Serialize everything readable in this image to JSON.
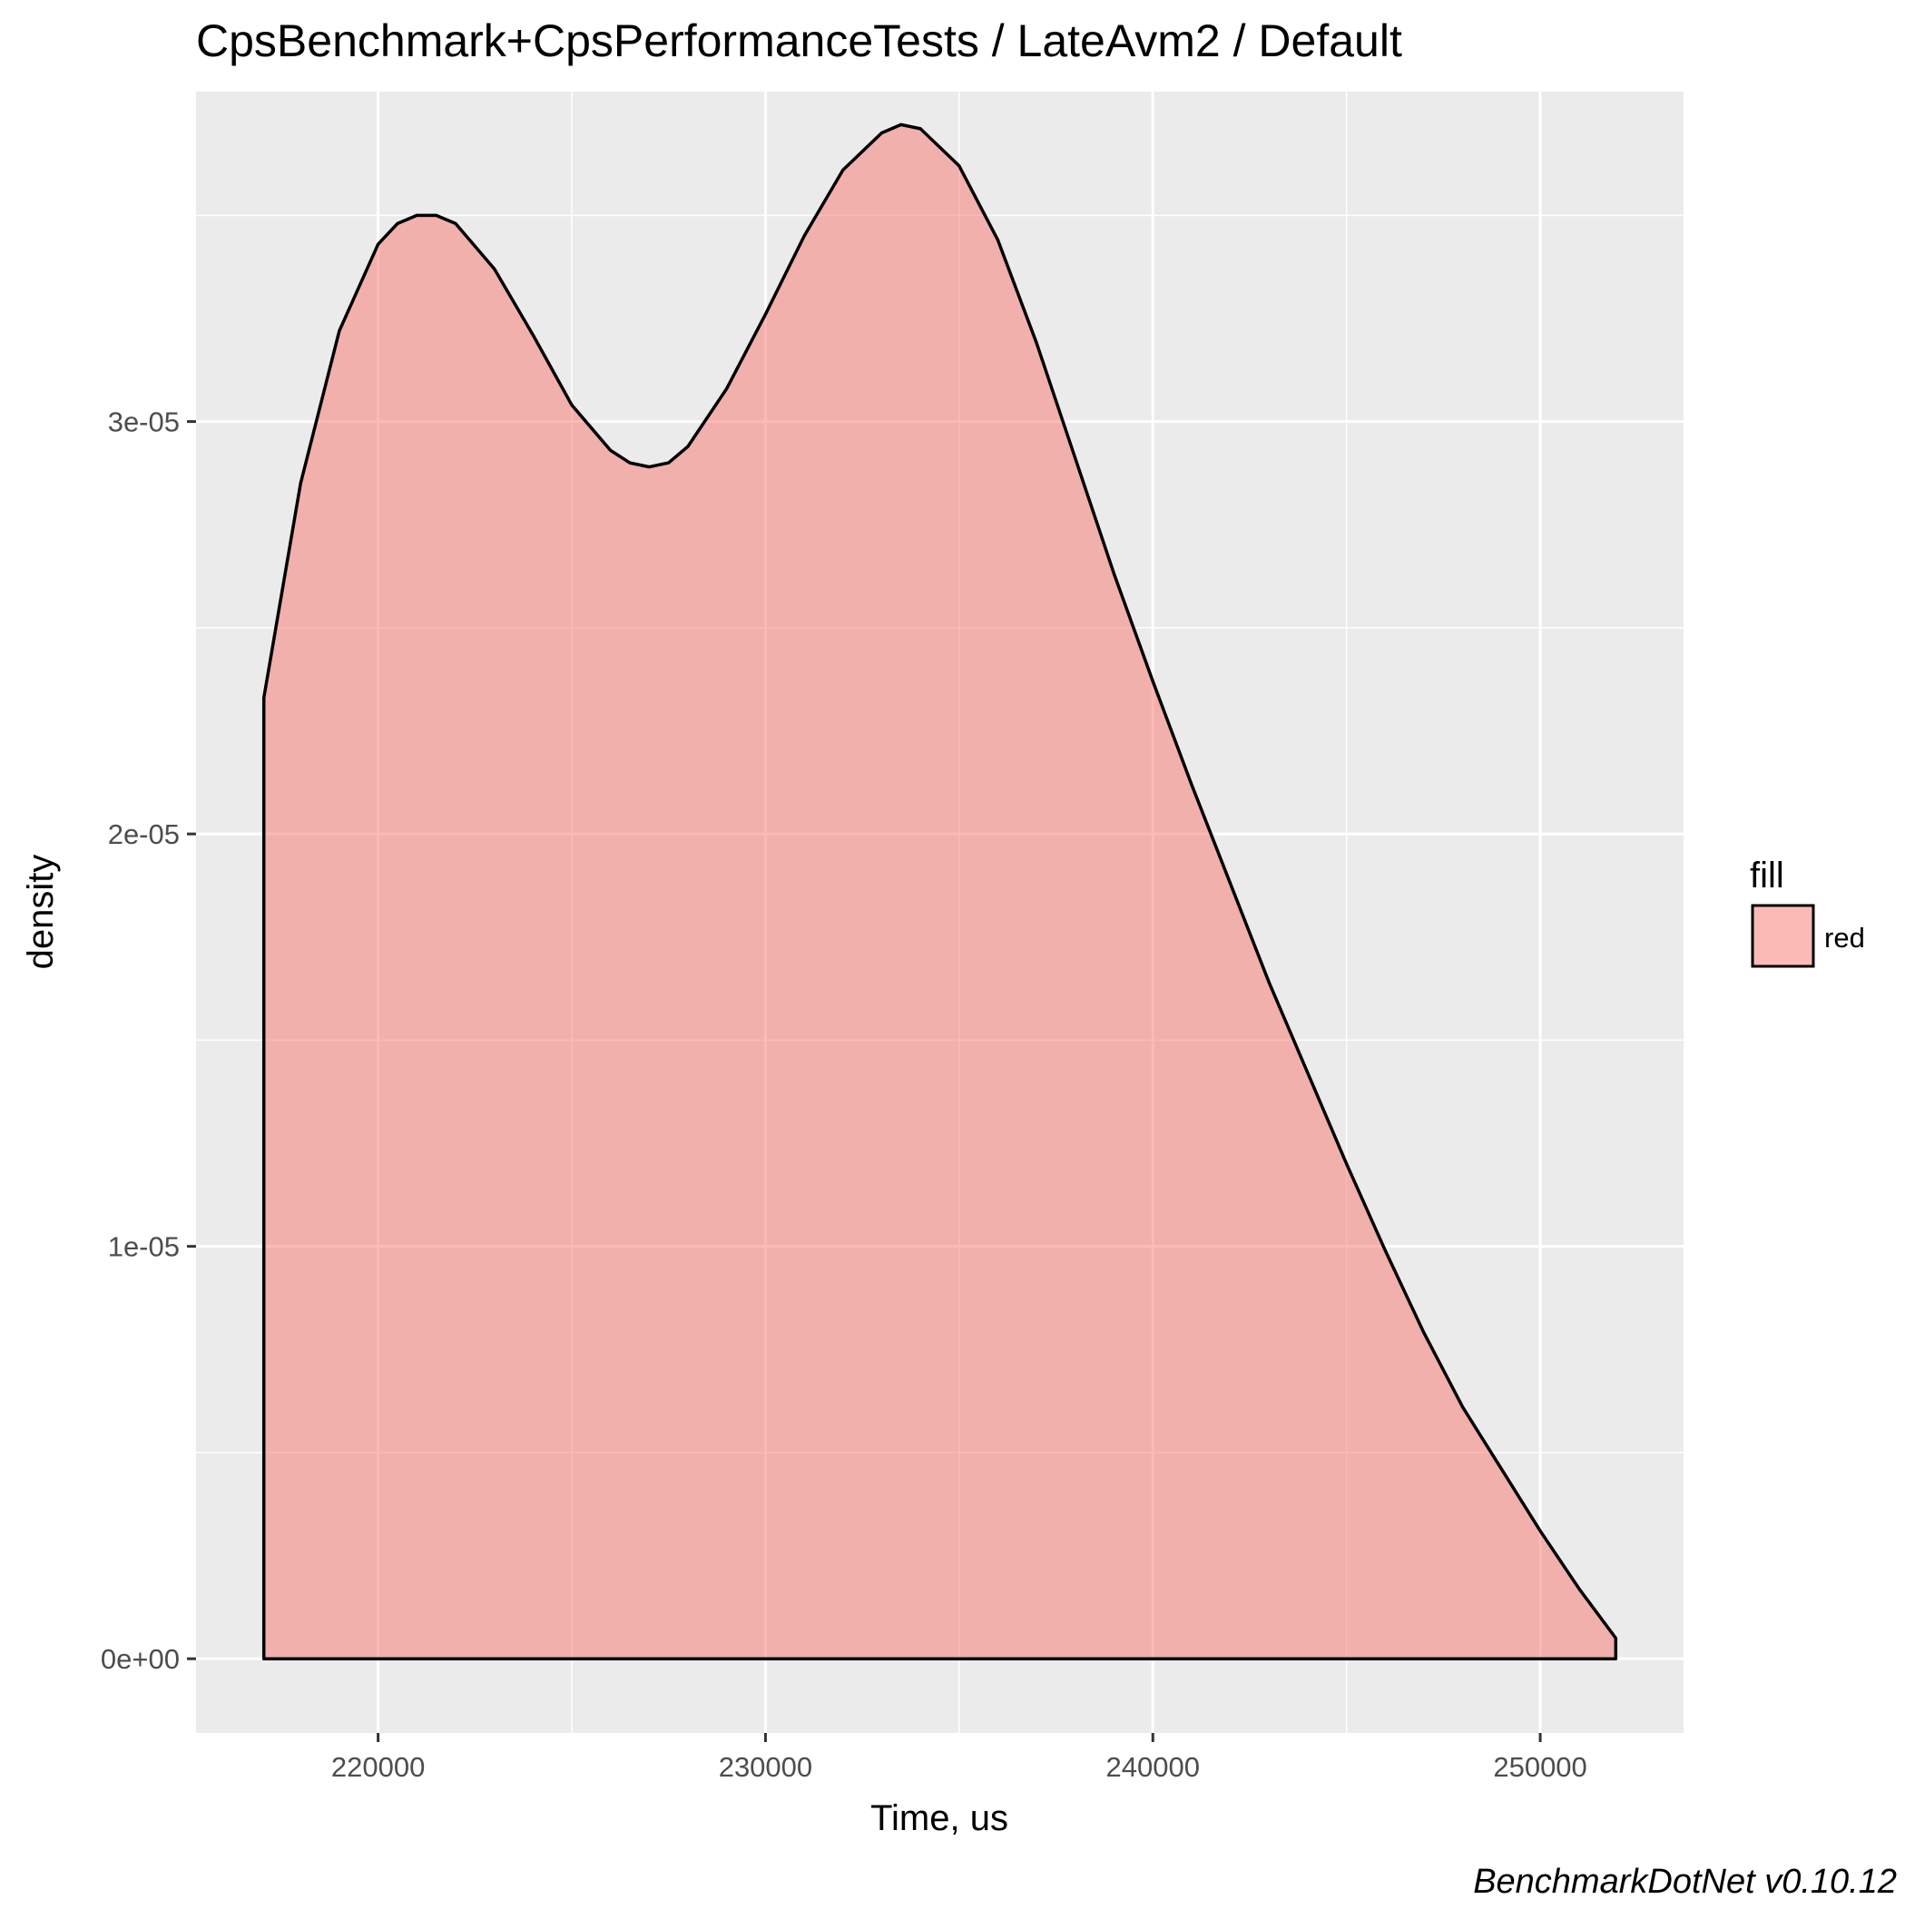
{
  "chart_data": {
    "type": "area",
    "title": "CpsBenchmark+CpsPerformanceTests / LateAvm2 / Default",
    "xlabel": "Time, us",
    "ylabel": "density",
    "xlim": [
      215300,
      253700
    ],
    "ylim": [
      -1.8e-06,
      3.8e-05
    ],
    "x_ticks": [
      {
        "value": 220000,
        "label": "220000"
      },
      {
        "value": 230000,
        "label": "230000"
      },
      {
        "value": 240000,
        "label": "240000"
      },
      {
        "value": 250000,
        "label": "250000"
      }
    ],
    "y_ticks": [
      {
        "value": 0,
        "label": "0e+00"
      },
      {
        "value": 1e-05,
        "label": "1e-05"
      },
      {
        "value": 2e-05,
        "label": "2e-05"
      },
      {
        "value": 3e-05,
        "label": "3e-05"
      }
    ],
    "grid": true,
    "legend": {
      "title": "fill",
      "position": "right",
      "items": [
        {
          "label": "red",
          "color": "#F8766D"
        }
      ]
    },
    "series": [
      {
        "fill_color": "#F8766D",
        "fill_opacity": 0.5,
        "stroke_color": "#000000",
        "x": [
          217050,
          218000,
          219000,
          220000,
          220500,
          221000,
          221500,
          222000,
          223000,
          224000,
          225000,
          226000,
          226500,
          227000,
          227500,
          228000,
          229000,
          230000,
          231000,
          232000,
          233000,
          233500,
          234000,
          235000,
          236000,
          237000,
          238000,
          239000,
          240000,
          241000,
          242000,
          243000,
          244000,
          245000,
          246000,
          247000,
          248000,
          249000,
          250000,
          251000,
          251950
        ],
        "y": [
          2.33e-05,
          2.85e-05,
          3.22e-05,
          3.43e-05,
          3.48e-05,
          3.5e-05,
          3.5e-05,
          3.48e-05,
          3.37e-05,
          3.21e-05,
          3.04e-05,
          2.93e-05,
          2.9e-05,
          2.89e-05,
          2.9e-05,
          2.94e-05,
          3.08e-05,
          3.26e-05,
          3.45e-05,
          3.61e-05,
          3.7e-05,
          3.72e-05,
          3.71e-05,
          3.62e-05,
          3.44e-05,
          3.19e-05,
          2.91e-05,
          2.63e-05,
          2.37e-05,
          2.12e-05,
          1.88e-05,
          1.64e-05,
          1.42e-05,
          1.2e-05,
          9.9e-06,
          7.9e-06,
          6.1e-06,
          4.6e-06,
          3.1e-06,
          1.7e-06,
          5e-07
        ]
      }
    ]
  },
  "caption": "BenchmarkDotNet v0.10.12"
}
